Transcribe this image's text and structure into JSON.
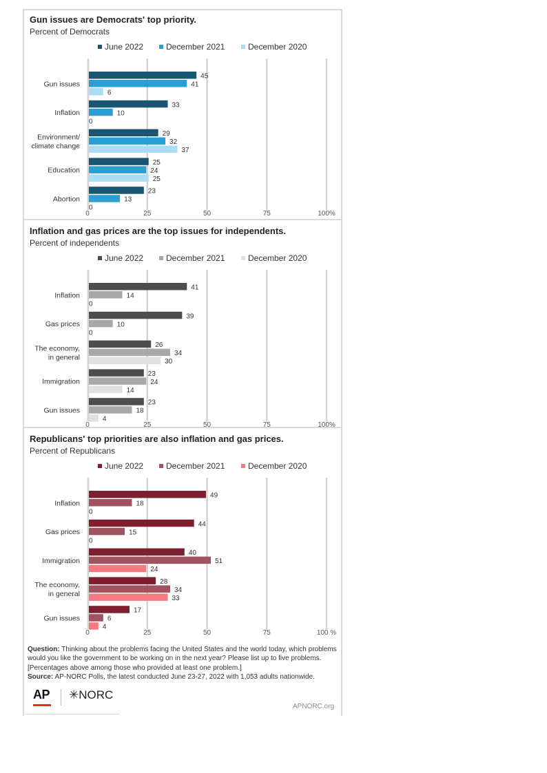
{
  "chart_data": [
    {
      "type": "bar",
      "orientation": "horizontal",
      "title": "Gun issues are Democrats' top priority.",
      "subtitle": "Percent of Democrats",
      "categories": [
        "Gun issues",
        "Inflation",
        "Environment/ climate change",
        "Education",
        "Abortion"
      ],
      "category_lines": [
        [
          "Gun issues"
        ],
        [
          "Inflation"
        ],
        [
          "Environment/",
          "climate change"
        ],
        [
          "Education"
        ],
        [
          "Abortion"
        ]
      ],
      "series": [
        {
          "name": "June 2022",
          "color": "#1a5572",
          "values": [
            45,
            33,
            29,
            25,
            23
          ]
        },
        {
          "name": "December 2021",
          "color": "#2a9fd6",
          "values": [
            41,
            10,
            32,
            24,
            13
          ]
        },
        {
          "name": "December 2020",
          "color": "#abdcf4",
          "values": [
            6,
            0,
            37,
            25,
            0
          ]
        }
      ],
      "xlim": [
        0,
        100
      ],
      "xticks": [
        "0",
        "25",
        "50",
        "75",
        "100%"
      ],
      "legend": "top",
      "grid": true
    },
    {
      "type": "bar",
      "orientation": "horizontal",
      "title": "Inflation and gas prices are the top issues for independents.",
      "subtitle": "Percent of independents",
      "categories": [
        "Inflation",
        "Gas prices",
        "The economy, in general",
        "Immigration",
        "Gun issues"
      ],
      "category_lines": [
        [
          "Inflation"
        ],
        [
          "Gas prices"
        ],
        [
          "The economy,",
          "in general"
        ],
        [
          "Immigration"
        ],
        [
          "Gun issues"
        ]
      ],
      "series": [
        {
          "name": "June 2022",
          "color": "#4d4d4d",
          "values": [
            41,
            39,
            26,
            23,
            23
          ]
        },
        {
          "name": "December 2021",
          "color": "#a8a8a8",
          "values": [
            14,
            10,
            34,
            24,
            18
          ]
        },
        {
          "name": "December 2020",
          "color": "#e0e0e0",
          "values": [
            0,
            0,
            30,
            14,
            4
          ]
        }
      ],
      "xlim": [
        0,
        100
      ],
      "xticks": [
        "0",
        "25",
        "50",
        "75",
        "100%"
      ],
      "legend": "top",
      "grid": true
    },
    {
      "type": "bar",
      "orientation": "horizontal",
      "title": "Republicans' top priorities are also inflation and gas prices.",
      "subtitle": "Percent of Republicans",
      "categories": [
        "Inflation",
        "Gas prices",
        "Immigration",
        "The economy, in general",
        "Gun issues"
      ],
      "category_lines": [
        [
          "Inflation"
        ],
        [
          "Gas prices"
        ],
        [
          "Immigration"
        ],
        [
          "The economy,",
          "in general"
        ],
        [
          "Gun issues"
        ]
      ],
      "series": [
        {
          "name": "June 2022",
          "color": "#7d1f2e",
          "values": [
            49,
            44,
            40,
            28,
            17
          ]
        },
        {
          "name": "December 2021",
          "color": "#a0525f",
          "values": [
            18,
            15,
            51,
            34,
            6
          ]
        },
        {
          "name": "December 2020",
          "color": "#f37b80",
          "values": [
            0,
            0,
            24,
            33,
            4
          ]
        }
      ],
      "xlim": [
        0,
        100
      ],
      "xticks": [
        "0",
        "25",
        "50",
        "75",
        "100 %"
      ],
      "legend": "top",
      "grid": true
    }
  ],
  "footer": {
    "question_label": "Question:",
    "question_text": "Thinking about the problems facing the United States and the world today, which problems would you like the government to be working on in the next year? Please list up to five problems. [Percentages above among those who provided at least one problem.]",
    "source_label": "Source:",
    "source_text": "AP-NORC Polls, the latest conducted June 23-27, 2022 with 1,053 adults nationwide.",
    "ap_logo": "AP",
    "norc_logo": "✳NORC",
    "site": "APNORC.org"
  }
}
